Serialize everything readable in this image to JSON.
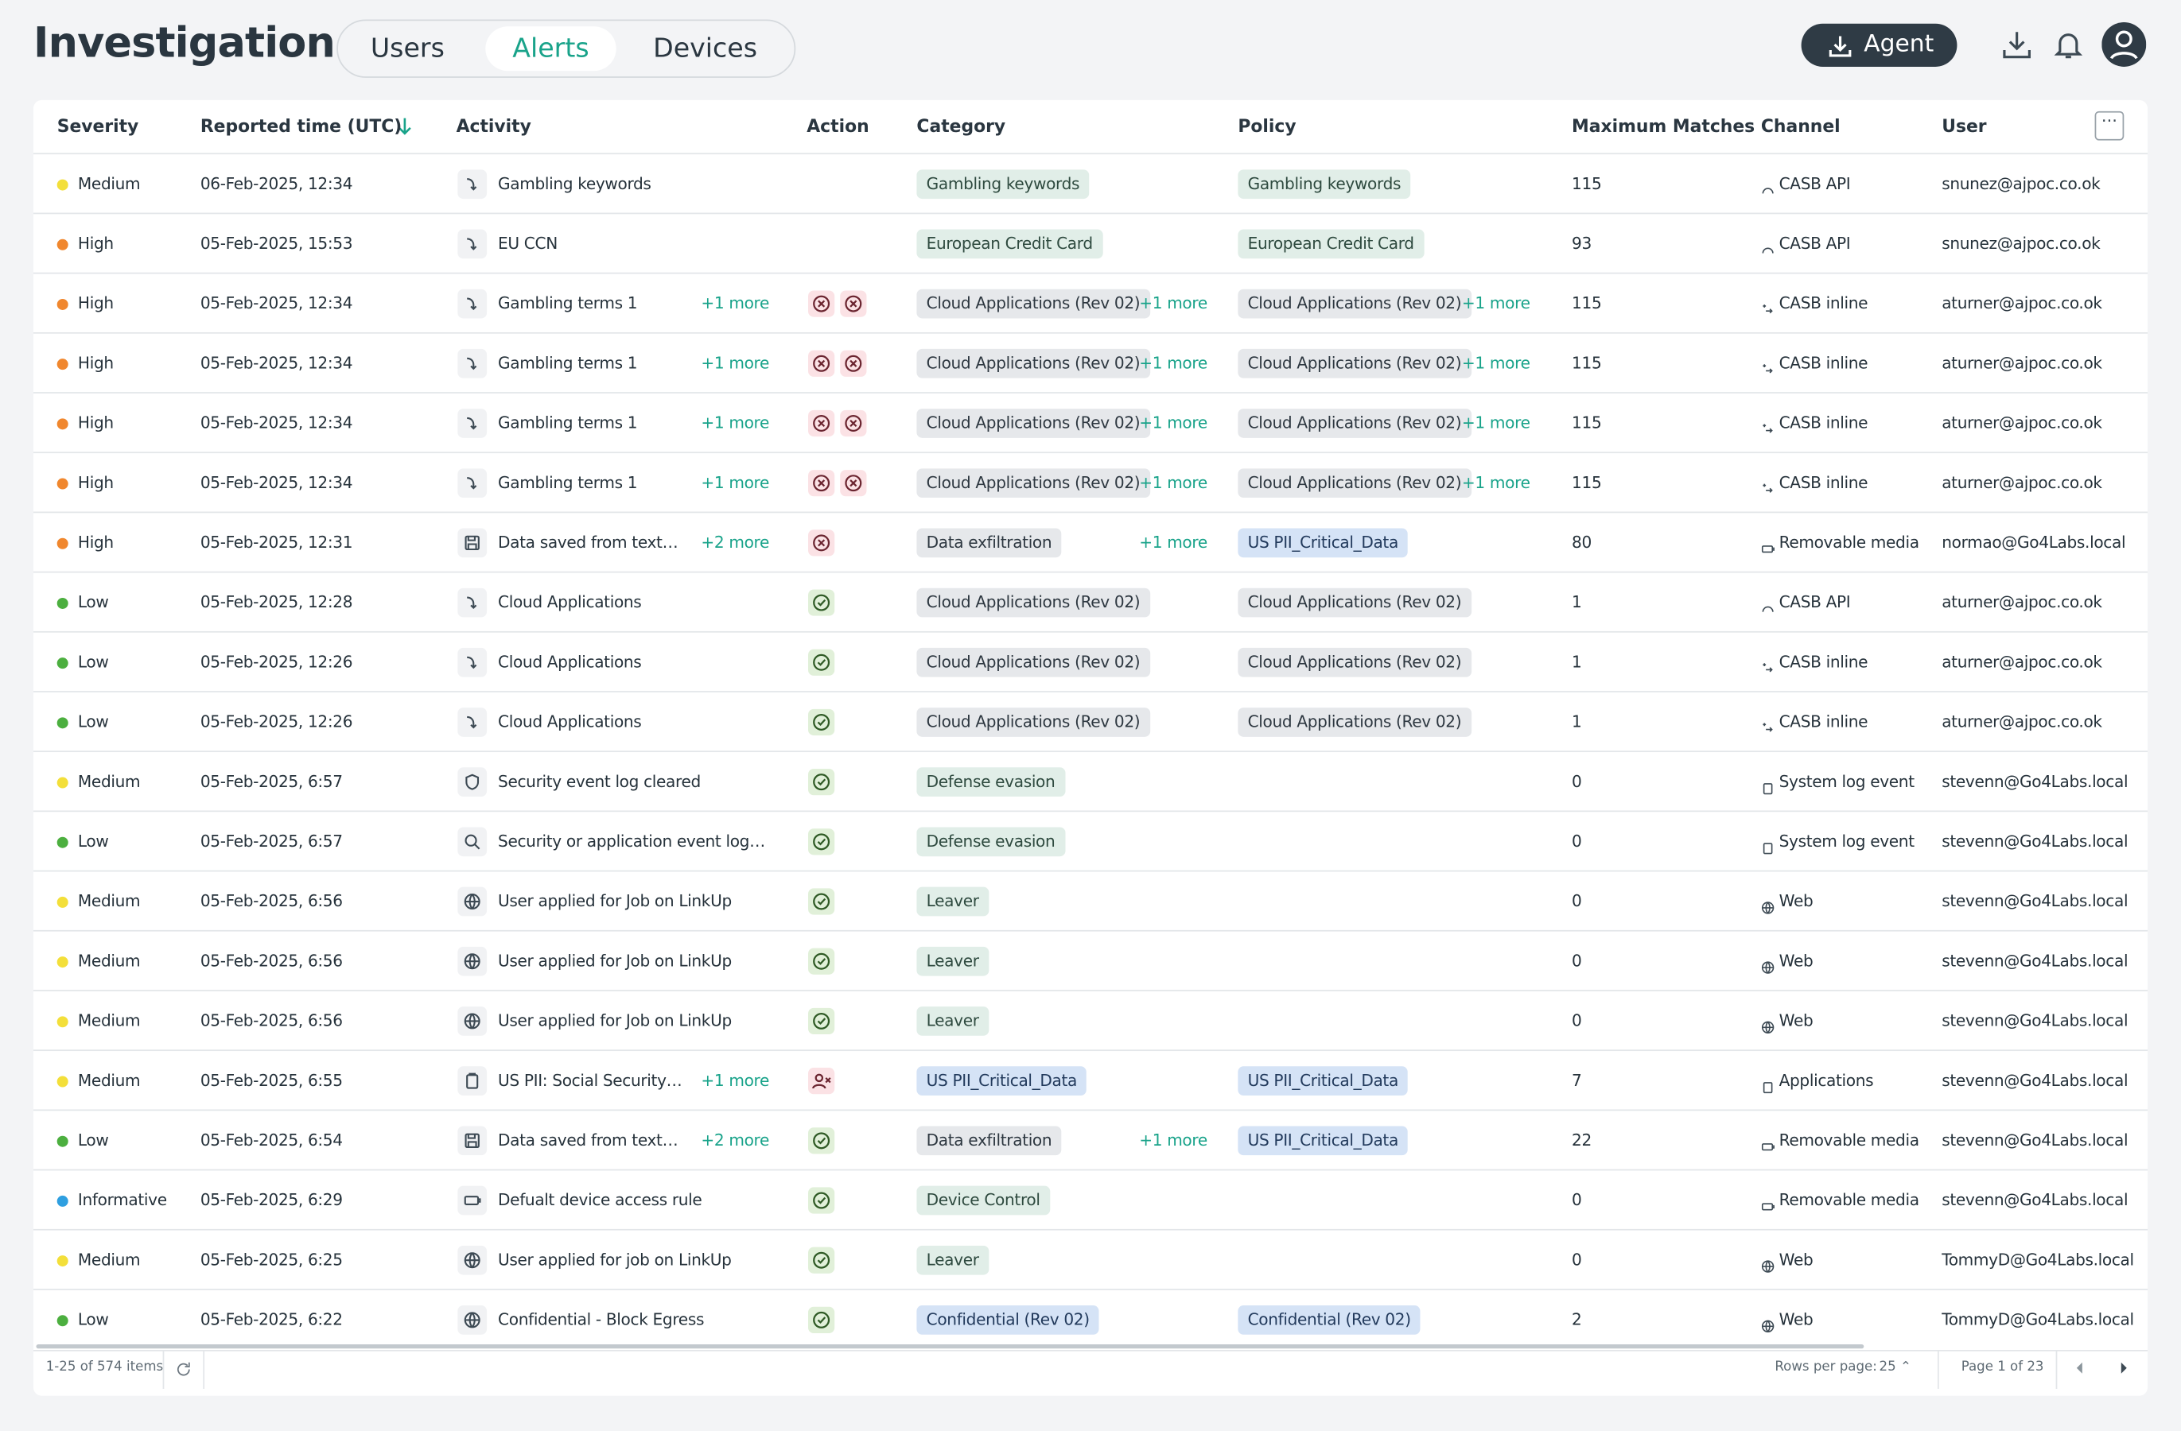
{
  "header": {
    "title": "Investigation",
    "tabs": [
      "Users",
      "Alerts",
      "Devices"
    ],
    "active_tab": 1,
    "agent_button": "Agent"
  },
  "table": {
    "columns": [
      "Severity",
      "Reported time (UTC)",
      "Activity",
      "Action",
      "Category",
      "Policy",
      "Maximum Matches",
      "Channel",
      "User"
    ],
    "rows": [
      {
        "severity": "Medium",
        "dot": "#f3df3a",
        "time": "06-Feb-2025, 12:34",
        "icon": "arrow",
        "activity": "Gambling keywords",
        "action": "none",
        "category": {
          "text": "Gambling keywords",
          "tone": "green"
        },
        "policy": {
          "text": "Gambling keywords",
          "tone": "green"
        },
        "matches": 115,
        "channel_icon": "api",
        "channel": "CASB API",
        "user": "snunez@ajpoc.co.ok"
      },
      {
        "severity": "High",
        "dot": "#f0872e",
        "time": "05-Feb-2025, 15:53",
        "icon": "arrow",
        "activity": "EU CCN",
        "action": "none",
        "category": {
          "text": "European Credit Card",
          "tone": "green"
        },
        "policy": {
          "text": "European Credit Card",
          "tone": "green"
        },
        "matches": 93,
        "channel_icon": "api",
        "channel": "CASB API",
        "user": "snunez@ajpoc.co.ok"
      },
      {
        "severity": "High",
        "dot": "#f0872e",
        "time": "05-Feb-2025, 12:34",
        "icon": "arrow",
        "activity": "Gambling terms 1",
        "activity_more": "+1 more",
        "action": "block2",
        "category": {
          "text": "Cloud Applications (Rev 02)",
          "tone": "grey"
        },
        "category_more": "+1 more",
        "policy": {
          "text": "Cloud Applications (Rev 02)",
          "tone": "grey"
        },
        "policy_more": "+1 more",
        "matches": 115,
        "channel_icon": "inline",
        "channel": "CASB inline",
        "user": "aturner@ajpoc.co.ok"
      },
      {
        "severity": "High",
        "dot": "#f0872e",
        "time": "05-Feb-2025, 12:34",
        "icon": "arrow",
        "activity": "Gambling terms 1",
        "activity_more": "+1 more",
        "action": "block2",
        "category": {
          "text": "Cloud Applications (Rev 02)",
          "tone": "grey"
        },
        "category_more": "+1 more",
        "policy": {
          "text": "Cloud Applications (Rev 02)",
          "tone": "grey"
        },
        "policy_more": "+1 more",
        "matches": 115,
        "channel_icon": "inline",
        "channel": "CASB inline",
        "user": "aturner@ajpoc.co.ok"
      },
      {
        "severity": "High",
        "dot": "#f0872e",
        "time": "05-Feb-2025, 12:34",
        "icon": "arrow",
        "activity": "Gambling terms 1",
        "activity_more": "+1 more",
        "action": "block2",
        "category": {
          "text": "Cloud Applications (Rev 02)",
          "tone": "grey"
        },
        "category_more": "+1 more",
        "policy": {
          "text": "Cloud Applications (Rev 02)",
          "tone": "grey"
        },
        "policy_more": "+1 more",
        "matches": 115,
        "channel_icon": "inline",
        "channel": "CASB inline",
        "user": "aturner@ajpoc.co.ok"
      },
      {
        "severity": "High",
        "dot": "#f0872e",
        "time": "05-Feb-2025, 12:34",
        "icon": "arrow",
        "activity": "Gambling terms 1",
        "activity_more": "+1 more",
        "action": "block2",
        "category": {
          "text": "Cloud Applications (Rev 02)",
          "tone": "grey"
        },
        "category_more": "+1 more",
        "policy": {
          "text": "Cloud Applications (Rev 02)",
          "tone": "grey"
        },
        "policy_more": "+1 more",
        "matches": 115,
        "channel_icon": "inline",
        "channel": "CASB inline",
        "user": "aturner@ajpoc.co.ok"
      },
      {
        "severity": "High",
        "dot": "#f0872e",
        "time": "05-Feb-2025, 12:31",
        "icon": "save",
        "activity": "Data saved from text…",
        "activity_more": "+2 more",
        "action": "block",
        "category": {
          "text": "Data exfiltration",
          "tone": "grey"
        },
        "category_more": "+1 more",
        "policy": {
          "text": "US PII_Critical_Data",
          "tone": "blue"
        },
        "matches": 80,
        "channel_icon": "media",
        "channel": "Removable media",
        "user": "normao@Go4Labs.local"
      },
      {
        "severity": "Low",
        "dot": "#4caf3f",
        "time": "05-Feb-2025, 12:28",
        "icon": "arrow",
        "activity": "Cloud Applications",
        "action": "allow",
        "category": {
          "text": "Cloud Applications (Rev 02)",
          "tone": "grey"
        },
        "policy": {
          "text": "Cloud Applications (Rev 02)",
          "tone": "grey"
        },
        "matches": 1,
        "channel_icon": "api",
        "channel": "CASB API",
        "user": "aturner@ajpoc.co.ok"
      },
      {
        "severity": "Low",
        "dot": "#4caf3f",
        "time": "05-Feb-2025, 12:26",
        "icon": "arrow",
        "activity": "Cloud Applications",
        "action": "allow",
        "category": {
          "text": "Cloud Applications (Rev 02)",
          "tone": "grey"
        },
        "policy": {
          "text": "Cloud Applications (Rev 02)",
          "tone": "grey"
        },
        "matches": 1,
        "channel_icon": "inline",
        "channel": "CASB inline",
        "user": "aturner@ajpoc.co.ok"
      },
      {
        "severity": "Low",
        "dot": "#4caf3f",
        "time": "05-Feb-2025, 12:26",
        "icon": "arrow",
        "activity": "Cloud Applications",
        "action": "allow",
        "category": {
          "text": "Cloud Applications (Rev 02)",
          "tone": "grey"
        },
        "policy": {
          "text": "Cloud Applications (Rev 02)",
          "tone": "grey"
        },
        "matches": 1,
        "channel_icon": "inline",
        "channel": "CASB inline",
        "user": "aturner@ajpoc.co.ok"
      },
      {
        "severity": "Medium",
        "dot": "#f3df3a",
        "time": "05-Feb-2025, 6:57",
        "icon": "shield",
        "activity": "Security event log cleared",
        "action": "allow",
        "category": {
          "text": "Defense evasion",
          "tone": "green"
        },
        "matches": 0,
        "channel_icon": "log",
        "channel": "System log event",
        "user": "stevenn@Go4Labs.local"
      },
      {
        "severity": "Low",
        "dot": "#4caf3f",
        "time": "05-Feb-2025, 6:57",
        "icon": "search",
        "activity": "Security or application event log…",
        "action": "allow",
        "category": {
          "text": "Defense evasion",
          "tone": "green"
        },
        "matches": 0,
        "channel_icon": "log",
        "channel": "System log event",
        "user": "stevenn@Go4Labs.local"
      },
      {
        "severity": "Medium",
        "dot": "#f3df3a",
        "time": "05-Feb-2025, 6:56",
        "icon": "globe",
        "activity": "User applied for Job on LinkUp",
        "action": "allow",
        "category": {
          "text": "Leaver",
          "tone": "green"
        },
        "matches": 0,
        "channel_icon": "web",
        "channel": "Web",
        "user": "stevenn@Go4Labs.local"
      },
      {
        "severity": "Medium",
        "dot": "#f3df3a",
        "time": "05-Feb-2025, 6:56",
        "icon": "globe",
        "activity": "User applied for Job on LinkUp",
        "action": "allow",
        "category": {
          "text": "Leaver",
          "tone": "green"
        },
        "matches": 0,
        "channel_icon": "web",
        "channel": "Web",
        "user": "stevenn@Go4Labs.local"
      },
      {
        "severity": "Medium",
        "dot": "#f3df3a",
        "time": "05-Feb-2025, 6:56",
        "icon": "globe",
        "activity": "User applied for Job on LinkUp",
        "action": "allow",
        "category": {
          "text": "Leaver",
          "tone": "green"
        },
        "matches": 0,
        "channel_icon": "web",
        "channel": "Web",
        "user": "stevenn@Go4Labs.local"
      },
      {
        "severity": "Medium",
        "dot": "#f3df3a",
        "time": "05-Feb-2025, 6:55",
        "icon": "clipboard",
        "activity": "US PII: Social Security…",
        "activity_more": "+1 more",
        "action": "user",
        "category": {
          "text": "US PII_Critical_Data",
          "tone": "blue"
        },
        "policy": {
          "text": "US PII_Critical_Data",
          "tone": "blue"
        },
        "matches": 7,
        "channel_icon": "log",
        "channel": "Applications",
        "user": "stevenn@Go4Labs.local"
      },
      {
        "severity": "Low",
        "dot": "#4caf3f",
        "time": "05-Feb-2025, 6:54",
        "icon": "save",
        "activity": "Data saved from text…",
        "activity_more": "+2 more",
        "action": "allow",
        "category": {
          "text": "Data exfiltration",
          "tone": "grey"
        },
        "category_more": "+1 more",
        "policy": {
          "text": "US PII_Critical_Data",
          "tone": "blue"
        },
        "matches": 22,
        "channel_icon": "media",
        "channel": "Removable media",
        "user": "stevenn@Go4Labs.local"
      },
      {
        "severity": "Informative",
        "dot": "#2f9fe0",
        "time": "05-Feb-2025, 6:29",
        "icon": "device",
        "activity": "Defualt device access rule",
        "action": "allow",
        "category": {
          "text": "Device Control",
          "tone": "green"
        },
        "matches": 0,
        "channel_icon": "media",
        "channel": "Removable media",
        "user": "stevenn@Go4Labs.local"
      },
      {
        "severity": "Medium",
        "dot": "#f3df3a",
        "time": "05-Feb-2025, 6:25",
        "icon": "globe",
        "activity": "User applied for job on LinkUp",
        "action": "allow",
        "category": {
          "text": "Leaver",
          "tone": "green"
        },
        "matches": 0,
        "channel_icon": "web",
        "channel": "Web",
        "user": "TommyD@Go4Labs.local"
      },
      {
        "severity": "Low",
        "dot": "#4caf3f",
        "time": "05-Feb-2025, 6:22",
        "icon": "globe",
        "activity": "Confidential - Block Egress",
        "action": "allow",
        "category": {
          "text": "Confidential (Rev 02)",
          "tone": "blue"
        },
        "policy": {
          "text": "Confidential (Rev 02)",
          "tone": "blue"
        },
        "matches": 2,
        "channel_icon": "web",
        "channel": "Web",
        "user": "TommyD@Go4Labs.local"
      }
    ]
  },
  "footer": {
    "items": "1-25 of 574 items",
    "rows_per_page_label": "Rows per page:",
    "rows_per_page": "25",
    "page": "Page 1 of 23"
  }
}
